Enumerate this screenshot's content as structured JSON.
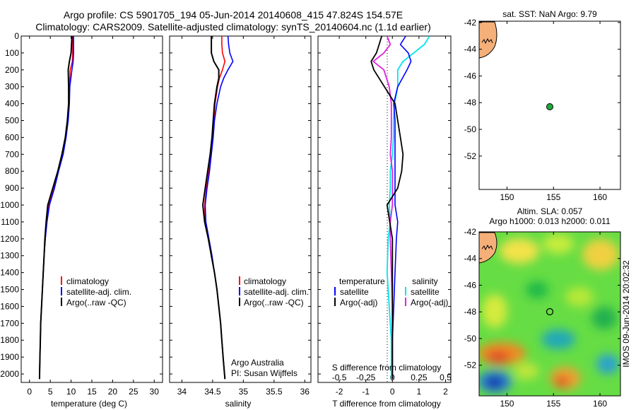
{
  "header": {
    "line1": "Argo profile: CS 5901705_194 05-Jun-2014 20140608_415 47.824S 154.57E",
    "line2": "Climatology: CARS2009. Satellite-adjusted climatology: synTS_20140604.nc (1.1d earlier)"
  },
  "depth_axis": {
    "ticks": [
      0,
      100,
      200,
      300,
      400,
      500,
      600,
      700,
      800,
      900,
      1000,
      1100,
      1200,
      1300,
      1400,
      1500,
      1600,
      1700,
      1800,
      1900,
      2000
    ],
    "range": [
      0,
      2050
    ]
  },
  "temp_panel": {
    "xlabel": "temperature (deg C)",
    "xticks": [
      0,
      5,
      10,
      15,
      20,
      25,
      30
    ],
    "xlim": [
      -2,
      32
    ],
    "legend": [
      "climatology",
      "satellite-adj. clim.",
      "Argo(..raw -QC)"
    ]
  },
  "sal_panel": {
    "xlabel": "salinity",
    "xticks": [
      "34",
      "34.5",
      "35",
      "35.5",
      "36"
    ],
    "xlim": [
      33.8,
      36.1
    ],
    "legend": [
      "climatology",
      "satellite-adj. clim.",
      "Argo(..raw -QC)"
    ],
    "credit1": "Argo Australia",
    "credit2": "PI: Susan Wijffels"
  },
  "diff_panel": {
    "xlabel": "T difference from climatology",
    "toplabel": "S difference from climatology",
    "xticks": [
      "-2",
      "-1",
      "0",
      "1",
      "2"
    ],
    "sticks": [
      "-0.5",
      "-0.25",
      "0",
      "0.25",
      "0.5"
    ],
    "xlim": [
      -2.8,
      2.2
    ],
    "legend_t_title": "temperature",
    "legend_s_title": "salinity",
    "legend_t": [
      "satellite",
      "Argo(-adj)"
    ],
    "legend_s": [
      "satellite",
      "Argo(-adj)"
    ]
  },
  "map_top": {
    "title": "sat. SST: NaN Argo: 9.79",
    "yticks": [
      "-42",
      "-44",
      "-46",
      "-48",
      "-50",
      "-52"
    ],
    "xticks": [
      "150",
      "155",
      "160"
    ]
  },
  "map_bottom": {
    "title1": "Altim. SLA: 0.057",
    "title2": "Argo h1000: 0.013 h2000: 0.011",
    "yticks": [
      "-42",
      "-44",
      "-46",
      "-48",
      "-50",
      "-52"
    ],
    "xticks": [
      "150",
      "155",
      "160"
    ],
    "stamp": "IMOS 09-Jun-2014 20:02:32"
  },
  "colors": {
    "climatology": "#ff0000",
    "satellite": "#0000ff",
    "argo": "#000000",
    "sat_salinity": "#00e5ee",
    "argo_salinity": "#e020e0",
    "float_marker": "#1faa3a",
    "land": "#f5b07a"
  },
  "chart_data": {
    "type": "line",
    "float_position": {
      "lat": -47.824,
      "lon": 154.57
    },
    "temperature": {
      "depth": [
        0,
        50,
        100,
        150,
        200,
        300,
        400,
        500,
        600,
        700,
        800,
        900,
        1000,
        1100,
        1200,
        1300,
        1400,
        1500,
        1600,
        1700,
        1800,
        1900,
        2030
      ],
      "climatology": [
        10.4,
        10.4,
        10.4,
        10.3,
        9.8,
        9.6,
        9.5,
        9.2,
        8.7,
        8.0,
        6.9,
        5.9,
        4.7,
        4.1,
        3.8,
        3.5,
        3.3,
        3.1,
        2.9,
        2.7,
        2.6,
        2.5,
        2.4
      ],
      "satellite": [
        10.6,
        10.6,
        10.6,
        10.5,
        10.2,
        9.7,
        9.6,
        9.3,
        8.8,
        8.1,
        7.0,
        6.0,
        4.8,
        4.2,
        3.8,
        3.5,
        3.3,
        3.1,
        2.9,
        2.7,
        2.6,
        2.5,
        2.4
      ],
      "argo": [
        10.2,
        10.1,
        10.0,
        9.6,
        9.3,
        9.4,
        9.4,
        9.1,
        8.6,
        7.8,
        6.8,
        5.6,
        4.4,
        4.0,
        3.7,
        3.5,
        3.3,
        3.1,
        2.9,
        2.7,
        2.6,
        2.5,
        2.4
      ]
    },
    "salinity": {
      "depth": [
        0,
        50,
        100,
        150,
        200,
        250,
        300,
        400,
        500,
        600,
        700,
        800,
        900,
        1000,
        1100,
        1200,
        1300,
        1400,
        1500,
        1600,
        1700,
        1800,
        1900,
        2030
      ],
      "climatology": [
        34.65,
        34.65,
        34.66,
        34.7,
        34.66,
        34.61,
        34.58,
        34.54,
        34.52,
        34.5,
        34.47,
        34.44,
        34.4,
        34.37,
        34.38,
        34.43,
        34.48,
        34.53,
        34.57,
        34.6,
        34.63,
        34.65,
        34.67,
        34.7
      ],
      "satellite": [
        34.75,
        34.76,
        34.78,
        34.83,
        34.75,
        34.68,
        34.63,
        34.57,
        34.53,
        34.51,
        34.48,
        34.45,
        34.41,
        34.38,
        34.39,
        34.44,
        34.49,
        34.53,
        34.57,
        34.6,
        34.63,
        34.65,
        34.67,
        34.7
      ],
      "argo": [
        34.48,
        34.48,
        34.48,
        34.52,
        34.6,
        34.6,
        34.57,
        34.53,
        34.51,
        34.49,
        34.46,
        34.42,
        34.38,
        34.34,
        34.37,
        34.43,
        34.48,
        34.53,
        34.57,
        34.6,
        34.63,
        34.65,
        34.67,
        34.7
      ]
    },
    "differences": {
      "depth": [
        0,
        50,
        100,
        150,
        200,
        300,
        400,
        500,
        600,
        700,
        800,
        900,
        1000,
        1100,
        1200,
        1400,
        1600,
        1800,
        2030
      ],
      "t_satellite": [
        0.5,
        0.3,
        0.6,
        0.7,
        0.55,
        0.2,
        0.05,
        0.1,
        0.1,
        0.1,
        0.1,
        0.1,
        0.1,
        0.2,
        0.15,
        0.1,
        0.05,
        0.0,
        0.0
      ],
      "t_argo": [
        -0.4,
        -0.5,
        -0.6,
        -0.8,
        -0.7,
        -0.3,
        0.1,
        0.2,
        0.3,
        0.4,
        0.35,
        0.2,
        -0.2,
        -0.1,
        0.0,
        0.0,
        0.0,
        0.0,
        0.0
      ],
      "s_satellite": [
        0.35,
        0.3,
        0.2,
        0.1,
        0.05,
        0.05,
        0.02,
        0.01,
        0.01,
        0.0,
        -0.02,
        -0.02,
        -0.03,
        -0.02,
        -0.04,
        -0.05,
        -0.03,
        -0.01,
        -0.01
      ],
      "s_argo": [
        -0.05,
        -0.02,
        -0.08,
        -0.18,
        -0.08,
        -0.03,
        -0.01,
        -0.01,
        -0.01,
        -0.02,
        0.0,
        0.0,
        0.0,
        -0.02,
        -0.02,
        -0.01,
        0.0,
        0.0,
        0.0
      ]
    }
  }
}
